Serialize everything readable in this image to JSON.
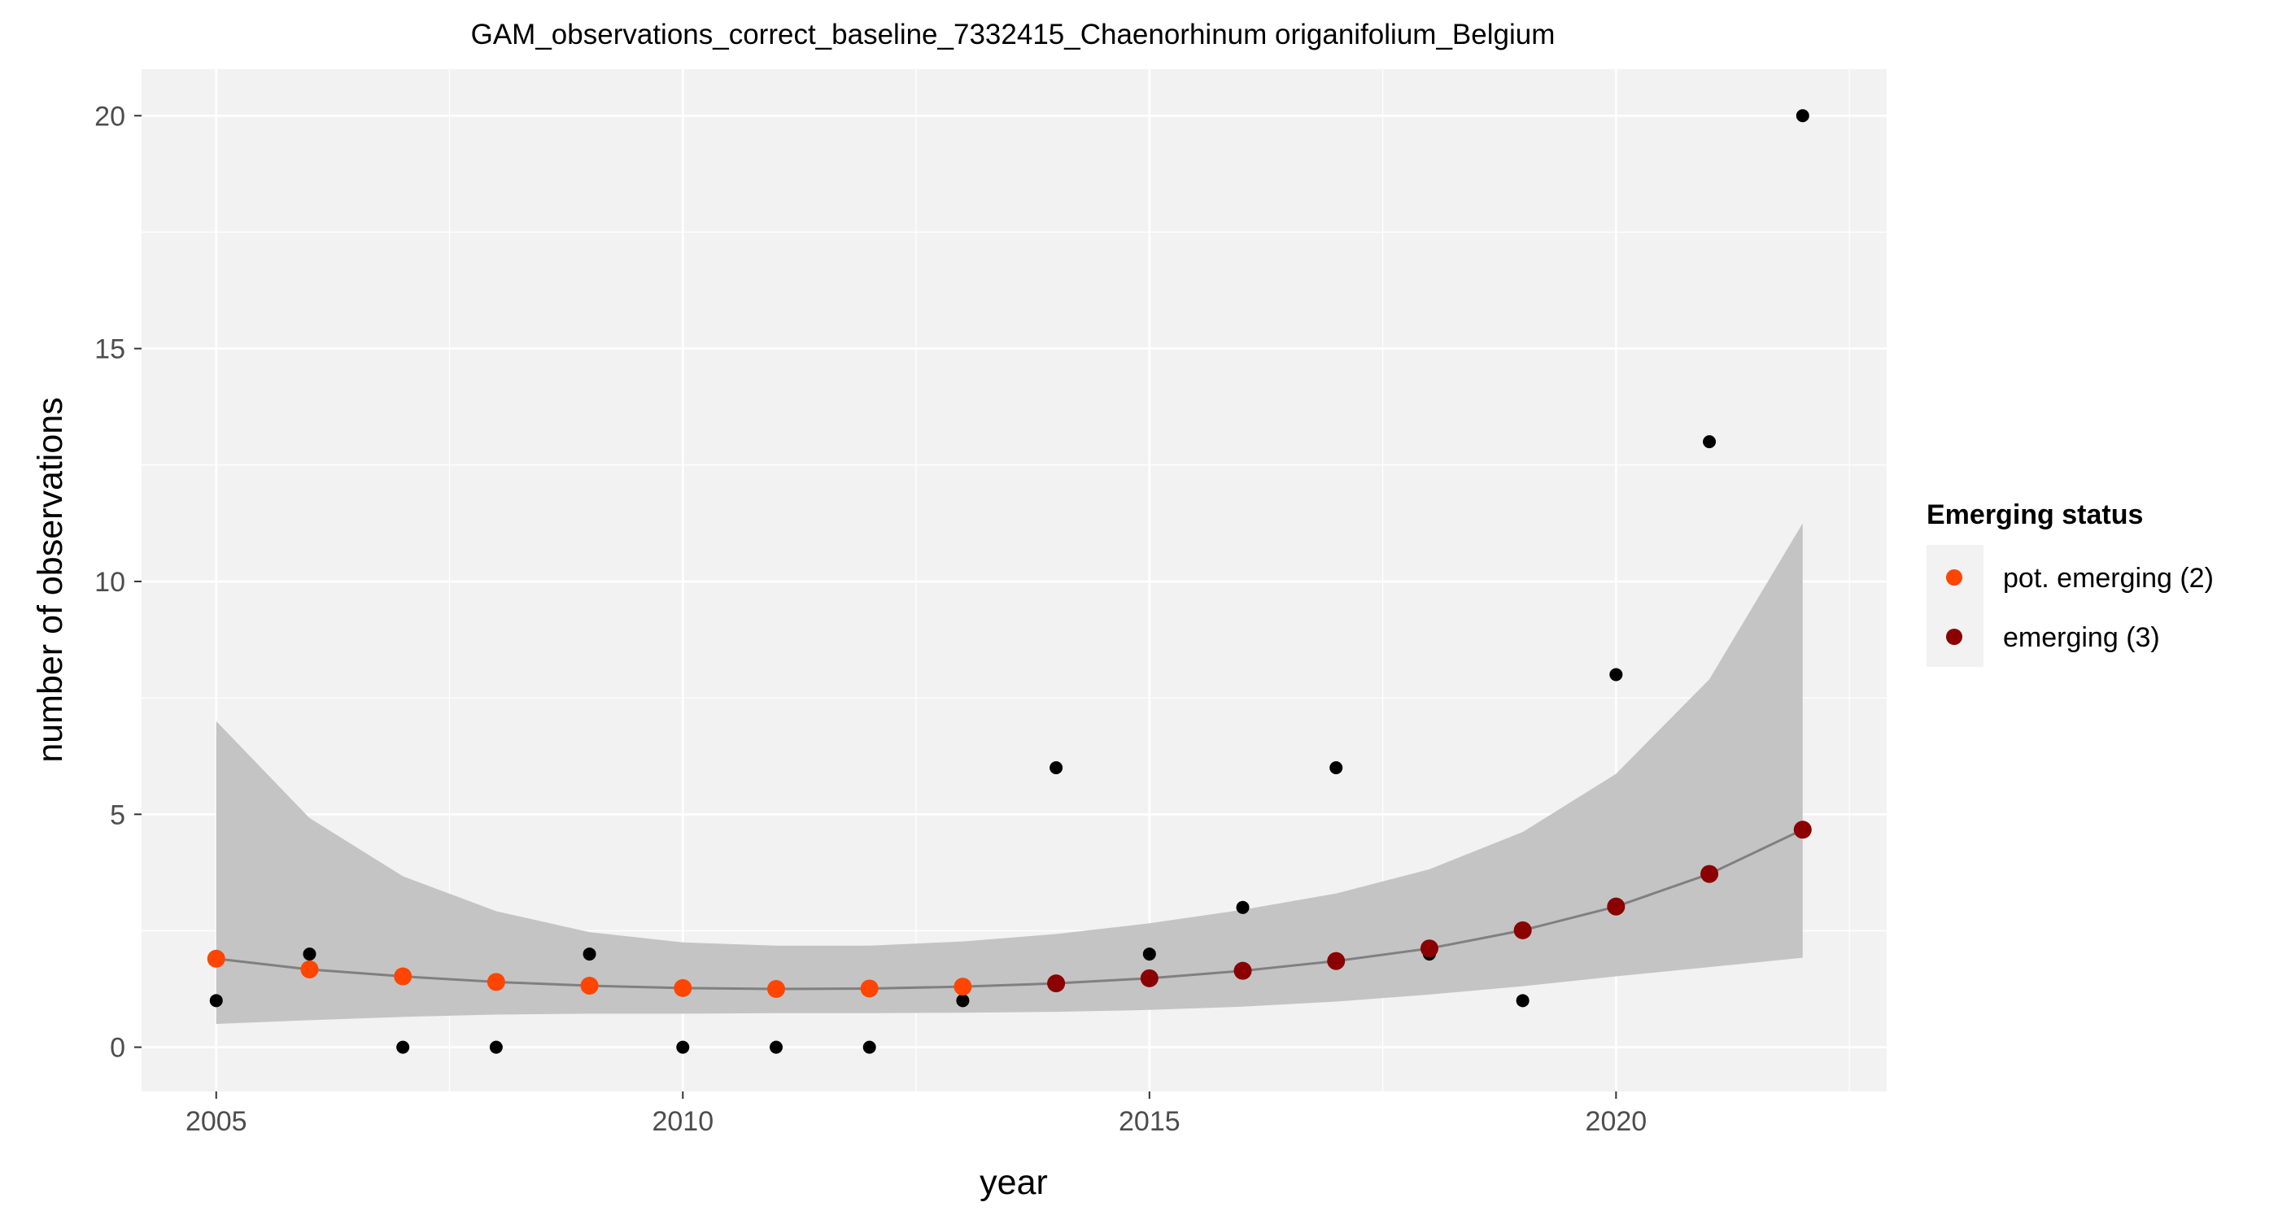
{
  "chart_data": {
    "type": "scatter",
    "title": "GAM_observations_correct_baseline_7332415_Chaenorhinum origanifolium_Belgium",
    "xlabel": "year",
    "ylabel": "number of observations",
    "xlim": [
      2004.2,
      2022.9
    ],
    "ylim": [
      -0.95,
      21.0
    ],
    "x_ticks": [
      2005,
      2010,
      2015,
      2020
    ],
    "y_ticks": [
      0,
      5,
      10,
      15,
      20
    ],
    "grid": true,
    "legend_position": "right",
    "legend": {
      "title": "Emerging status",
      "entries": [
        {
          "label": "pot. emerging (2)",
          "color": "#FF4500"
        },
        {
          "label": "emerging (3)",
          "color": "#8B0000"
        }
      ]
    },
    "colors": {
      "panel_background": "#F2F2F2",
      "gridline": "#FFFFFF",
      "ribbon": "#C4C4C4",
      "fit_line": "#808080",
      "observation_point": "#000000"
    },
    "observations": {
      "x": [
        2005,
        2006,
        2007,
        2008,
        2009,
        2010,
        2011,
        2012,
        2013,
        2014,
        2015,
        2016,
        2017,
        2018,
        2019,
        2020,
        2021,
        2022
      ],
      "y": [
        1,
        2,
        0,
        0,
        2,
        0,
        0,
        0,
        1,
        6,
        2,
        3,
        6,
        2,
        1,
        8,
        13,
        20
      ]
    },
    "gam_fit": {
      "x": [
        2005,
        2006,
        2007,
        2008,
        2009,
        2010,
        2011,
        2012,
        2013,
        2014,
        2015,
        2016,
        2017,
        2018,
        2019,
        2020,
        2021,
        2022
      ],
      "fit": [
        1.9,
        1.67,
        1.52,
        1.4,
        1.32,
        1.27,
        1.25,
        1.26,
        1.3,
        1.37,
        1.48,
        1.64,
        1.85,
        2.12,
        2.51,
        3.02,
        3.72,
        4.67
      ],
      "lower": [
        0.5,
        0.58,
        0.65,
        0.7,
        0.72,
        0.72,
        0.73,
        0.73,
        0.74,
        0.76,
        0.8,
        0.87,
        0.98,
        1.13,
        1.31,
        1.52,
        1.72,
        1.92
      ],
      "upper": [
        7.0,
        4.92,
        3.67,
        2.92,
        2.47,
        2.25,
        2.18,
        2.18,
        2.27,
        2.43,
        2.66,
        2.95,
        3.3,
        3.82,
        4.62,
        5.87,
        7.9,
        11.25
      ],
      "status": [
        2,
        2,
        2,
        2,
        2,
        2,
        2,
        2,
        2,
        3,
        3,
        3,
        3,
        3,
        3,
        3,
        3,
        3
      ]
    }
  }
}
